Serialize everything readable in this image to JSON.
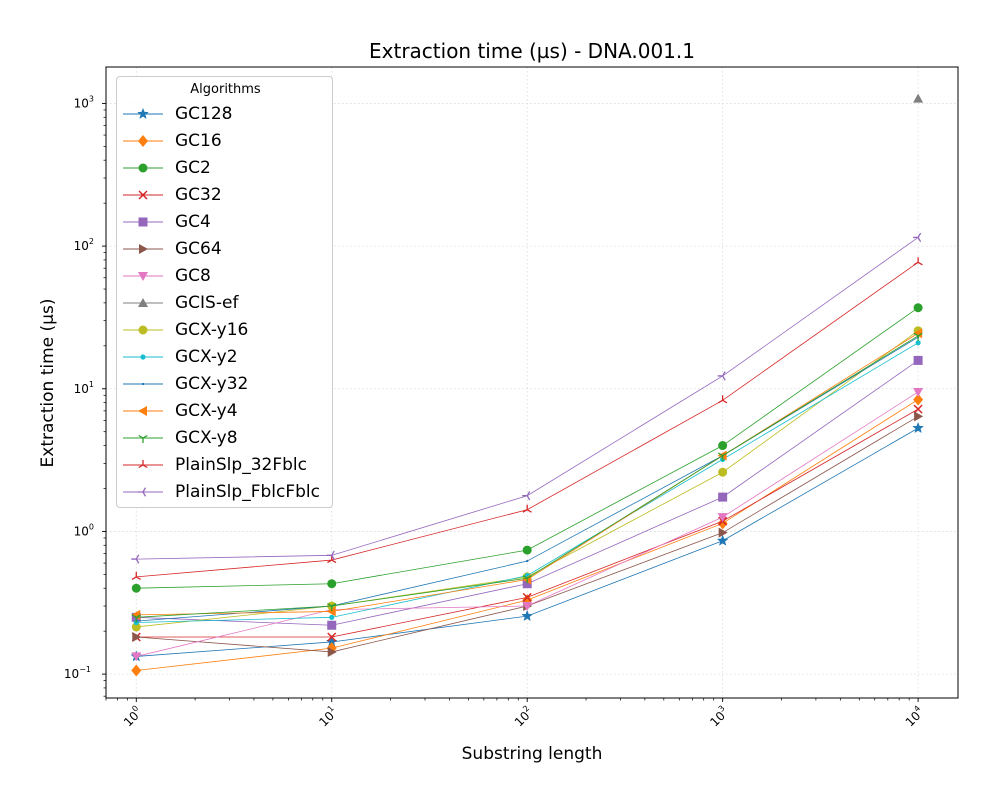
{
  "chart_data": {
    "type": "line",
    "title": "Extraction time (µs) - DNA.001.1",
    "xlabel": "Substring length",
    "ylabel": "Extraction time (µs)",
    "xscale": "log",
    "yscale": "log",
    "xlim": [
      0.7,
      16000
    ],
    "ylim": [
      0.068,
      1800
    ],
    "grid": true,
    "legend_title": "Algorithms",
    "legend_position": "upper-left",
    "x_ticks": [
      {
        "value": 1,
        "base": "10",
        "exp": "0"
      },
      {
        "value": 10,
        "base": "10",
        "exp": "1"
      },
      {
        "value": 100,
        "base": "10",
        "exp": "2"
      },
      {
        "value": 1000,
        "base": "10",
        "exp": "3"
      },
      {
        "value": 10000,
        "base": "10",
        "exp": "4"
      }
    ],
    "y_ticks": [
      {
        "value": 0.1,
        "base": "10",
        "exp": "−1"
      },
      {
        "value": 1,
        "base": "10",
        "exp": "0"
      },
      {
        "value": 10,
        "base": "10",
        "exp": "1"
      },
      {
        "value": 100,
        "base": "10",
        "exp": "2"
      },
      {
        "value": 1000,
        "base": "10",
        "exp": "3"
      }
    ],
    "series": [
      {
        "name": "GC128",
        "color": "#1f77b4",
        "marker": "star",
        "x": [
          1,
          10,
          100,
          1000,
          10000
        ],
        "y": [
          0.133,
          0.168,
          0.255,
          0.86,
          5.3
        ]
      },
      {
        "name": "GC16",
        "color": "#ff7f0e",
        "marker": "diamond",
        "x": [
          1,
          10,
          100,
          1000,
          10000
        ],
        "y": [
          0.106,
          0.152,
          0.33,
          1.14,
          8.4
        ]
      },
      {
        "name": "GC2",
        "color": "#2ca02c",
        "marker": "circle",
        "x": [
          1,
          10,
          100,
          1000,
          10000
        ],
        "y": [
          0.4,
          0.43,
          0.74,
          4.0,
          37
        ]
      },
      {
        "name": "GC32",
        "color": "#d62728",
        "marker": "x",
        "x": [
          1,
          10,
          100,
          1000,
          10000
        ],
        "y": [
          0.182,
          0.182,
          0.345,
          1.18,
          7.2
        ]
      },
      {
        "name": "GC4",
        "color": "#9467bd",
        "marker": "square",
        "x": [
          1,
          10,
          100,
          1000,
          10000
        ],
        "y": [
          0.25,
          0.22,
          0.43,
          1.74,
          15.8
        ]
      },
      {
        "name": "GC64",
        "color": "#8c564b",
        "marker": "triangle-right",
        "x": [
          1,
          10,
          100,
          1000,
          10000
        ],
        "y": [
          0.182,
          0.143,
          0.3,
          0.98,
          6.4
        ]
      },
      {
        "name": "GC8",
        "color": "#e377c2",
        "marker": "triangle-down",
        "x": [
          1,
          10,
          100,
          1000,
          10000
        ],
        "y": [
          0.133,
          0.283,
          0.3,
          1.26,
          9.5
        ]
      },
      {
        "name": "GCIS-ef",
        "color": "#7f7f7f",
        "marker": "triangle-up",
        "x": [
          10000
        ],
        "y": [
          1080
        ]
      },
      {
        "name": "GCX-y16",
        "color": "#bcbd22",
        "marker": "circle",
        "x": [
          1,
          10,
          100,
          1000,
          10000
        ],
        "y": [
          0.214,
          0.3,
          0.48,
          2.6,
          25.5
        ]
      },
      {
        "name": "GCX-y2",
        "color": "#17becf",
        "marker": "point",
        "x": [
          1,
          10,
          100,
          1000,
          10000
        ],
        "y": [
          0.23,
          0.25,
          0.49,
          3.2,
          21
        ]
      },
      {
        "name": "GCX-y32",
        "color": "#1f77b4",
        "marker": "pixel",
        "x": [
          1,
          10,
          100,
          1000,
          10000
        ],
        "y": [
          0.235,
          0.3,
          0.62,
          3.4,
          23
        ]
      },
      {
        "name": "GCX-y4",
        "color": "#ff7f0e",
        "marker": "triangle-left",
        "x": [
          1,
          10,
          100,
          1000,
          10000
        ],
        "y": [
          0.26,
          0.275,
          0.46,
          3.4,
          24.5
        ]
      },
      {
        "name": "GCX-y8",
        "color": "#2ca02c",
        "marker": "tri-down",
        "x": [
          1,
          10,
          100,
          1000,
          10000
        ],
        "y": [
          0.25,
          0.3,
          0.47,
          3.4,
          23.5
        ]
      },
      {
        "name": "PlainSlp_32Fblc",
        "color": "#d62728",
        "marker": "tri-up",
        "x": [
          1,
          10,
          100,
          1000,
          10000
        ],
        "y": [
          0.48,
          0.63,
          1.42,
          8.3,
          77
        ]
      },
      {
        "name": "PlainSlp_FblcFblc",
        "color": "#9467bd",
        "marker": "tri-left",
        "x": [
          1,
          10,
          100,
          1000,
          10000
        ],
        "y": [
          0.64,
          0.68,
          1.78,
          12.3,
          115
        ]
      }
    ]
  }
}
